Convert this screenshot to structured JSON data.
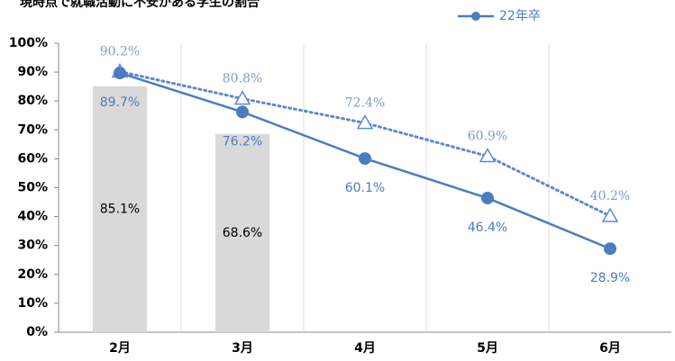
{
  "chart_data": {
    "type": "combo",
    "title": "現時点で就職活動に不安がある学生の割合",
    "categories": [
      "2月",
      "3月",
      "4月",
      "5月",
      "6月"
    ],
    "series": [
      {
        "type": "bar",
        "color": "#d9d9d9",
        "values": [
          85.1,
          68.6,
          null,
          null,
          null
        ],
        "value_labels": [
          "85.1%",
          "68.6%",
          null,
          null,
          null
        ]
      },
      {
        "type": "line",
        "style": "dotted",
        "marker": "triangle",
        "color": "#5b8ad0",
        "label_color": "#7f9cc8",
        "values": [
          90.2,
          80.8,
          72.4,
          60.9,
          40.2
        ],
        "value_labels": [
          "90.2%",
          "80.8%",
          "72.4%",
          "60.9%",
          "40.2%"
        ]
      },
      {
        "type": "line",
        "style": "solid",
        "marker": "circle",
        "name": "22年卒",
        "color": "#4a7cc2",
        "label_color": "#4a7cc2",
        "values": [
          89.7,
          76.2,
          60.1,
          46.4,
          28.9
        ],
        "value_labels": [
          "89.7%",
          "76.2%",
          "60.1%",
          "46.4%",
          "28.9%"
        ]
      }
    ],
    "ylim": [
      0,
      100
    ],
    "yticks": [
      {
        "value": 0,
        "label": "0%"
      },
      {
        "value": 10,
        "label": "10%"
      },
      {
        "value": 20,
        "label": "20%"
      },
      {
        "value": 30,
        "label": "30%"
      },
      {
        "value": 40,
        "label": "40%"
      },
      {
        "value": 50,
        "label": "50%"
      },
      {
        "value": 60,
        "label": "60%"
      },
      {
        "value": 70,
        "label": "70%"
      },
      {
        "value": 80,
        "label": "80%"
      },
      {
        "value": 90,
        "label": "90%"
      },
      {
        "value": 100,
        "label": "100%"
      }
    ],
    "legend": "top-right"
  }
}
